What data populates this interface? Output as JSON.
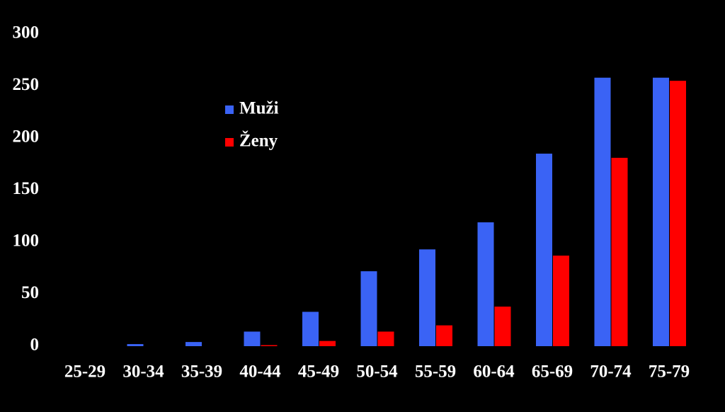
{
  "chart_data": {
    "type": "bar",
    "categories": [
      "25-29",
      "30-34",
      "35-39",
      "40-44",
      "45-49",
      "50-54",
      "55-59",
      "60-64",
      "65-69",
      "70-74",
      "75-79"
    ],
    "series": [
      {
        "name": "Muži",
        "color": "#3a63f5",
        "values": [
          0,
          2,
          4,
          14,
          33,
          72,
          93,
          119,
          185,
          258,
          258
        ]
      },
      {
        "name": "Ženy",
        "color": "#ff0000",
        "values": [
          0,
          0,
          0,
          1,
          5,
          14,
          20,
          38,
          87,
          181,
          255
        ]
      }
    ],
    "ylim": [
      0,
      300
    ],
    "yticks": [
      0,
      50,
      100,
      150,
      200,
      250,
      300
    ],
    "grid": false,
    "legend": "upper left"
  }
}
